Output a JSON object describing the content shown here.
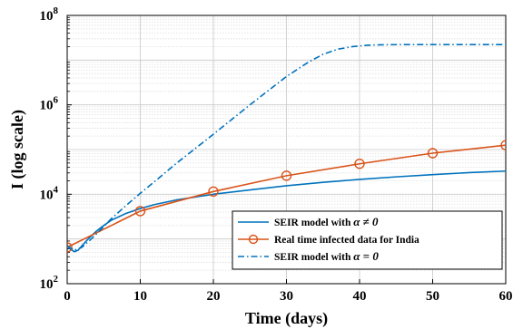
{
  "chart_data": {
    "type": "line",
    "title": "",
    "xlabel": "Time (days)",
    "ylabel": "I (log scale)",
    "xlim": [
      0,
      60
    ],
    "ylim": [
      100,
      100000000
    ],
    "yscale": "log",
    "grid": true,
    "legend_position": "bottom-right",
    "x_ticks": [
      "0",
      "10",
      "20",
      "30",
      "40",
      "50",
      "60"
    ],
    "y_ticks": [
      {
        "base": "10",
        "exp": "2"
      },
      {
        "base": "10",
        "exp": "4"
      },
      {
        "base": "10",
        "exp": "6"
      },
      {
        "base": "10",
        "exp": "8"
      }
    ],
    "series": [
      {
        "name": "SEIR model with α ≠ 0",
        "legend_prefix": "SEIR model with ",
        "legend_math": "α ≠ 0",
        "color": "#0072BD",
        "style": "solid",
        "marker": "none",
        "x": [
          0,
          0.5,
          1,
          1.5,
          2,
          3,
          4,
          5,
          6,
          8,
          10,
          12,
          15,
          20,
          25,
          30,
          35,
          40,
          45,
          50,
          55,
          60
        ],
        "y": [
          700,
          580,
          520,
          560,
          700,
          1050,
          1500,
          2000,
          2600,
          3700,
          4800,
          5900,
          7500,
          10000,
          12500,
          15500,
          18500,
          21500,
          24500,
          27500,
          30500,
          33000
        ]
      },
      {
        "name": "Real time infected data for India",
        "legend_prefix": "Real time infected data for India",
        "legend_math": "",
        "color": "#D95319",
        "style": "solid",
        "marker": "circle",
        "x": [
          0,
          10,
          20,
          30,
          40,
          50,
          60
        ],
        "y": [
          650,
          4200,
          11500,
          26000,
          48000,
          83000,
          125000
        ]
      },
      {
        "name": "SEIR model with α = 0",
        "legend_prefix": "SEIR model with ",
        "legend_math": "α = 0",
        "color": "#0072BD",
        "style": "dashdot",
        "marker": "none",
        "x": [
          0,
          1,
          2,
          3,
          4,
          5,
          6,
          8,
          10,
          12,
          15,
          20,
          25,
          30,
          33,
          35,
          37,
          39,
          41,
          43,
          45,
          50,
          55,
          60
        ],
        "y": [
          700,
          560,
          650,
          900,
          1300,
          1900,
          2800,
          5500,
          10500,
          19500,
          50000,
          220000,
          1000000,
          4300000,
          9000000,
          13500000,
          17500000,
          20000000,
          21500000,
          22000000,
          22200000,
          22300000,
          22300000,
          22300000
        ]
      }
    ]
  }
}
